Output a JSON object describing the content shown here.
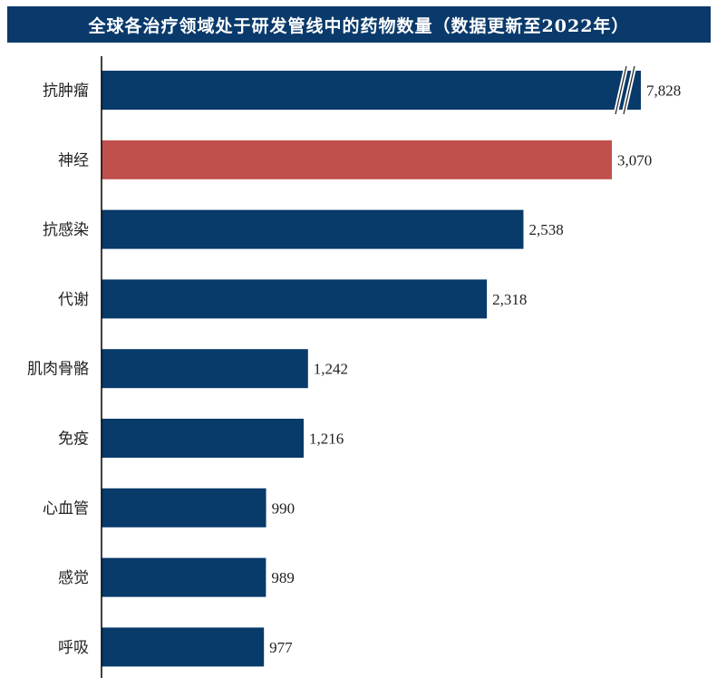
{
  "chart_data": {
    "type": "bar",
    "orientation": "horizontal",
    "title": "全球各治疗领域处于研发管线中的药物数量（数据更新至2022年）",
    "categories": [
      "抗肿瘤",
      "神经",
      "抗感染",
      "代谢",
      "肌肉骨骼",
      "免疫",
      "心血管",
      "感觉",
      "呼吸"
    ],
    "values": [
      7828,
      3070,
      2538,
      2318,
      1242,
      1216,
      990,
      989,
      977
    ],
    "value_labels": [
      "7,828",
      "3,070",
      "2,538",
      "2,318",
      "1,242",
      "1,216",
      "990",
      "989",
      "977"
    ],
    "axis_break_on": "抗肿瘤",
    "highlight": "神经",
    "colors": {
      "bar": "#083a6a",
      "highlight": "#c0504d",
      "title_bg": "#0a3a6b"
    },
    "grid": false,
    "legend": "none"
  }
}
